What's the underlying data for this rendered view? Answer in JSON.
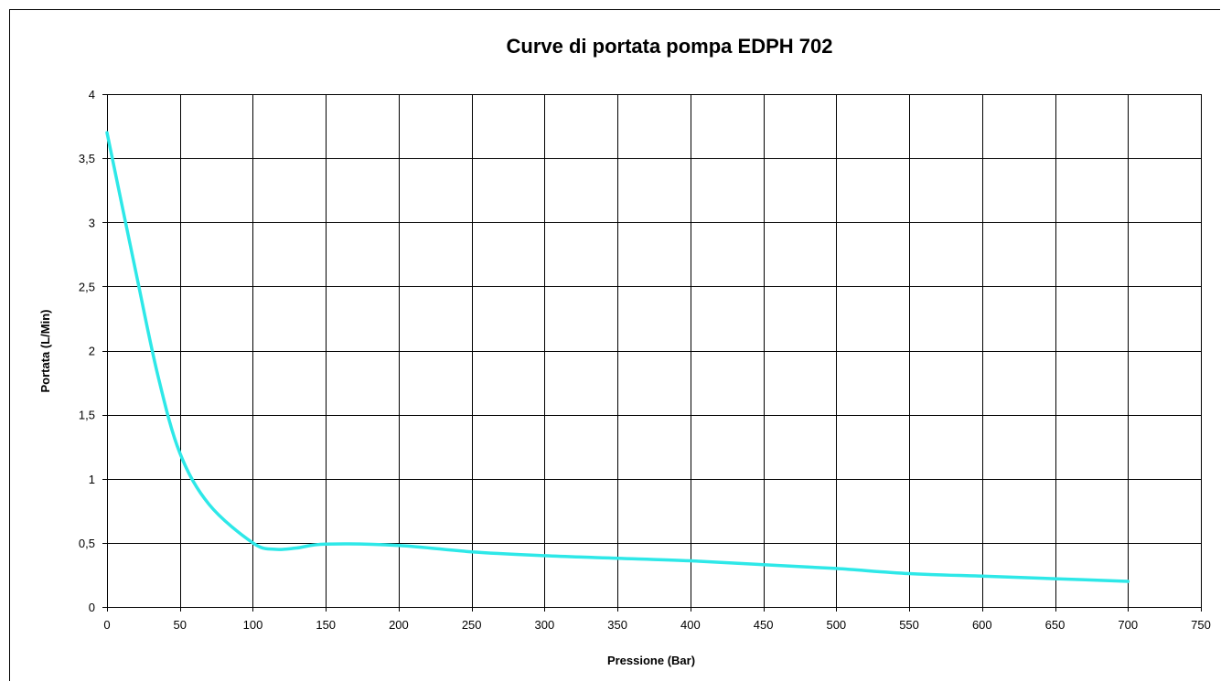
{
  "chart_data": {
    "type": "line",
    "title": "Curve di portata pompa EDPH 702",
    "xlabel": "Pressione (Bar)",
    "ylabel": "Portata (L/Min)",
    "xlim": [
      0,
      750
    ],
    "ylim": [
      0,
      4
    ],
    "x_ticks": [
      "0",
      "50",
      "100",
      "150",
      "200",
      "250",
      "300",
      "350",
      "400",
      "450",
      "500",
      "550",
      "600",
      "650",
      "700",
      "750"
    ],
    "y_ticks": [
      "0",
      "0,5",
      "1",
      "1,5",
      "2",
      "2,5",
      "3",
      "3,5",
      "4"
    ],
    "grid": true,
    "legend": "none",
    "line_color": "#2ee8e8",
    "series": [
      {
        "x": [
          0,
          20,
          35,
          50,
          70,
          100,
          115,
          130,
          150,
          200,
          250,
          300,
          350,
          400,
          450,
          500,
          550,
          600,
          650,
          700
        ],
        "y": [
          3.7,
          2.6,
          1.8,
          1.2,
          0.8,
          0.5,
          0.45,
          0.46,
          0.49,
          0.48,
          0.43,
          0.4,
          0.38,
          0.36,
          0.33,
          0.3,
          0.26,
          0.24,
          0.22,
          0.2
        ]
      }
    ]
  }
}
